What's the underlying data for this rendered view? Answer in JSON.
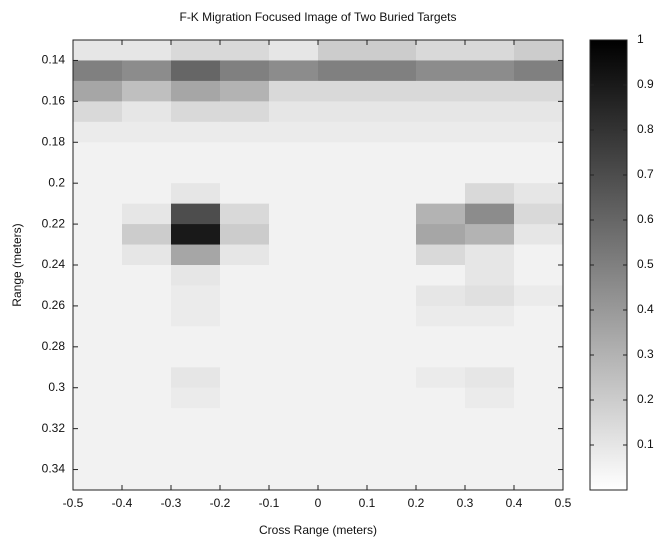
{
  "chart_data": {
    "type": "heatmap",
    "title": "F-K Migration Focused Image of Two Buried Targets",
    "xlabel": "Cross Range (meters)",
    "ylabel": "Range (meters)",
    "xlim": [
      -0.5,
      0.5
    ],
    "ylim": [
      0.13,
      0.35
    ],
    "y_reversed": true,
    "xticks": [
      -0.5,
      -0.4,
      -0.3,
      -0.2,
      -0.1,
      0,
      0.1,
      0.2,
      0.3,
      0.4,
      0.5
    ],
    "yticks": [
      0.14,
      0.16,
      0.18,
      0.2,
      0.22,
      0.24,
      0.26,
      0.28,
      0.3,
      0.32,
      0.34
    ],
    "clim": [
      0,
      1
    ],
    "cticks": [
      0.1,
      0.2,
      0.3,
      0.4,
      0.5,
      0.6,
      0.7,
      0.8,
      0.9,
      1
    ],
    "colormap": "gray_reversed",
    "xbins": [
      -0.5,
      -0.4,
      -0.3,
      -0.2,
      -0.1,
      0,
      0.1,
      0.2,
      0.3,
      0.4,
      0.5
    ],
    "ybins": [
      0.13,
      0.14,
      0.15,
      0.16,
      0.17,
      0.18,
      0.19,
      0.2,
      0.21,
      0.22,
      0.23,
      0.24,
      0.25,
      0.26,
      0.27,
      0.28,
      0.29,
      0.3,
      0.31,
      0.32,
      0.33,
      0.34,
      0.35
    ],
    "z": [
      [
        0.1,
        0.1,
        0.15,
        0.15,
        0.1,
        0.2,
        0.2,
        0.15,
        0.15,
        0.2
      ],
      [
        0.5,
        0.45,
        0.6,
        0.5,
        0.45,
        0.5,
        0.5,
        0.45,
        0.45,
        0.5
      ],
      [
        0.35,
        0.25,
        0.35,
        0.3,
        0.15,
        0.15,
        0.15,
        0.15,
        0.15,
        0.15
      ],
      [
        0.15,
        0.1,
        0.15,
        0.15,
        0.1,
        0.1,
        0.1,
        0.1,
        0.1,
        0.1
      ],
      [
        0.08,
        0.08,
        0.08,
        0.08,
        0.08,
        0.08,
        0.08,
        0.08,
        0.08,
        0.08
      ],
      [
        0.05,
        0.05,
        0.05,
        0.05,
        0.05,
        0.05,
        0.05,
        0.05,
        0.05,
        0.05
      ],
      [
        0.05,
        0.05,
        0.05,
        0.05,
        0.05,
        0.05,
        0.05,
        0.05,
        0.05,
        0.05
      ],
      [
        0.05,
        0.05,
        0.1,
        0.05,
        0.05,
        0.05,
        0.05,
        0.05,
        0.15,
        0.1
      ],
      [
        0.05,
        0.1,
        0.7,
        0.15,
        0.05,
        0.05,
        0.05,
        0.3,
        0.45,
        0.15
      ],
      [
        0.05,
        0.2,
        0.9,
        0.2,
        0.05,
        0.05,
        0.05,
        0.35,
        0.3,
        0.1
      ],
      [
        0.05,
        0.1,
        0.35,
        0.1,
        0.05,
        0.05,
        0.05,
        0.15,
        0.1,
        0.05
      ],
      [
        0.05,
        0.05,
        0.1,
        0.05,
        0.05,
        0.05,
        0.05,
        0.05,
        0.1,
        0.05
      ],
      [
        0.05,
        0.05,
        0.08,
        0.05,
        0.05,
        0.05,
        0.05,
        0.1,
        0.12,
        0.08
      ],
      [
        0.05,
        0.05,
        0.08,
        0.05,
        0.05,
        0.05,
        0.05,
        0.08,
        0.08,
        0.05
      ],
      [
        0.05,
        0.05,
        0.05,
        0.05,
        0.05,
        0.05,
        0.05,
        0.05,
        0.05,
        0.05
      ],
      [
        0.05,
        0.05,
        0.05,
        0.05,
        0.05,
        0.05,
        0.05,
        0.05,
        0.05,
        0.05
      ],
      [
        0.05,
        0.05,
        0.1,
        0.05,
        0.05,
        0.05,
        0.05,
        0.08,
        0.1,
        0.05
      ],
      [
        0.05,
        0.05,
        0.08,
        0.05,
        0.05,
        0.05,
        0.05,
        0.05,
        0.08,
        0.05
      ],
      [
        0.05,
        0.05,
        0.05,
        0.05,
        0.05,
        0.05,
        0.05,
        0.05,
        0.05,
        0.05
      ],
      [
        0.05,
        0.05,
        0.05,
        0.05,
        0.05,
        0.05,
        0.05,
        0.05,
        0.05,
        0.05
      ],
      [
        0.05,
        0.05,
        0.05,
        0.05,
        0.05,
        0.05,
        0.05,
        0.05,
        0.05,
        0.05
      ],
      [
        0.05,
        0.05,
        0.05,
        0.05,
        0.05,
        0.05,
        0.05,
        0.05,
        0.05,
        0.05
      ]
    ]
  }
}
